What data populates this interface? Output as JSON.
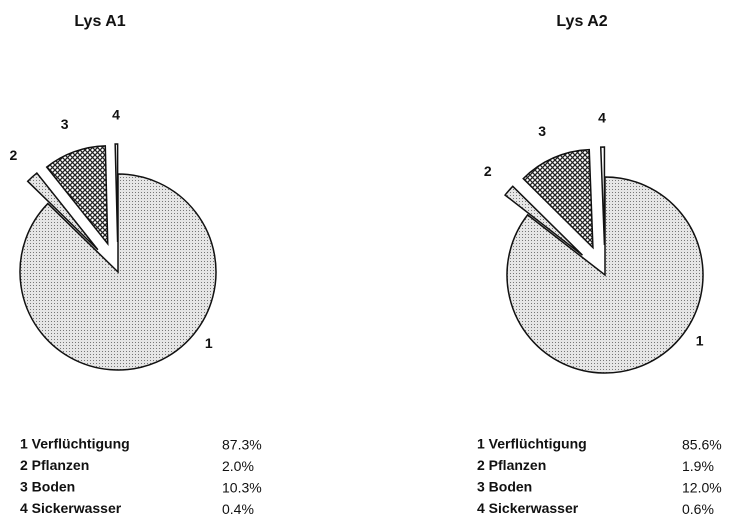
{
  "chart_data": [
    {
      "type": "pie",
      "title": "Lys A1",
      "slice_labels": [
        "1",
        "2",
        "3",
        "4"
      ],
      "categories": [
        "1 Verflüchtigung",
        "2 Pflanzen",
        "3 Boden",
        "4 Sickerwasser"
      ],
      "values": [
        87.3,
        2.0,
        10.3,
        0.4
      ],
      "value_labels": [
        "87.3%",
        "2.0%",
        "10.3%",
        "0.4%"
      ]
    },
    {
      "type": "pie",
      "title": "Lys A2",
      "slice_labels": [
        "1",
        "2",
        "3",
        "4"
      ],
      "categories": [
        "1 Verflüchtigung",
        "2 Pflanzen",
        "3 Boden",
        "4 Sickerwasser"
      ],
      "values": [
        85.6,
        1.9,
        12.0,
        0.6
      ],
      "value_labels": [
        "85.6%",
        "1.9%",
        "12.0%",
        "0.6%"
      ]
    }
  ]
}
